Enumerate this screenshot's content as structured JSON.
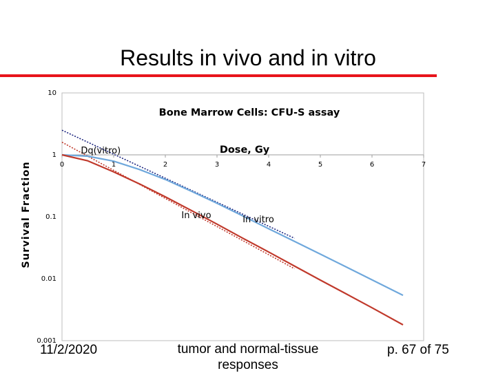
{
  "slide": {
    "title": "Results in vivo and in vitro",
    "footer_date": "11/2/2020",
    "footer_center": "tumor and normal-tissue responses",
    "footer_page": "p. 67 of 75",
    "accent_color": "#e8141b"
  },
  "chart_data": {
    "type": "line",
    "title": "Bone Marrow Cells: CFU-S assay",
    "xlabel": "Dose, Gy",
    "ylabel": "Survival Fraction",
    "xlim": [
      0,
      7
    ],
    "ylim": [
      0.001,
      10
    ],
    "y_scale": "log",
    "x_ticks": [
      "0",
      "1",
      "2",
      "3",
      "4",
      "5",
      "6",
      "7"
    ],
    "y_ticks": [
      "10",
      "1",
      "0.1",
      "0.01",
      "0.001"
    ],
    "grid": false,
    "series": [
      {
        "name": "In vitro",
        "color": "#6fa8dc",
        "x": [
          0,
          0.5,
          1.0,
          1.5,
          2.0,
          2.5,
          3.0,
          3.5,
          4.0,
          4.5,
          5.0,
          5.5,
          6.0,
          6.6
        ],
        "y": [
          1.0,
          0.95,
          0.79,
          0.58,
          0.4,
          0.26,
          0.165,
          0.103,
          0.064,
          0.04,
          0.025,
          0.0155,
          0.0096,
          0.0054
        ]
      },
      {
        "name": "In vivo",
        "color": "#c0392b",
        "x": [
          0,
          0.5,
          1.0,
          1.5,
          2.0,
          2.5,
          3.0,
          3.5,
          4.0,
          4.5,
          5.0,
          5.5,
          6.0,
          6.6
        ],
        "y": [
          1.0,
          0.8,
          0.53,
          0.34,
          0.21,
          0.127,
          0.076,
          0.045,
          0.027,
          0.016,
          0.0095,
          0.0057,
          0.0034,
          0.0018
        ]
      }
    ],
    "extrapolations": [
      {
        "color": "#1a237e",
        "x": [
          0,
          4.5
        ],
        "y": [
          2.5,
          0.045
        ]
      },
      {
        "color": "#c0392b",
        "x": [
          0,
          4.5
        ],
        "y": [
          1.6,
          0.0145
        ]
      }
    ],
    "annotations": [
      {
        "text": "Dq(vitro)",
        "x": 0.75,
        "y": 1.05
      },
      {
        "text": "In vivo",
        "x": 2.6,
        "y": 0.095
      },
      {
        "text": "In vitro",
        "x": 3.8,
        "y": 0.082
      }
    ]
  }
}
